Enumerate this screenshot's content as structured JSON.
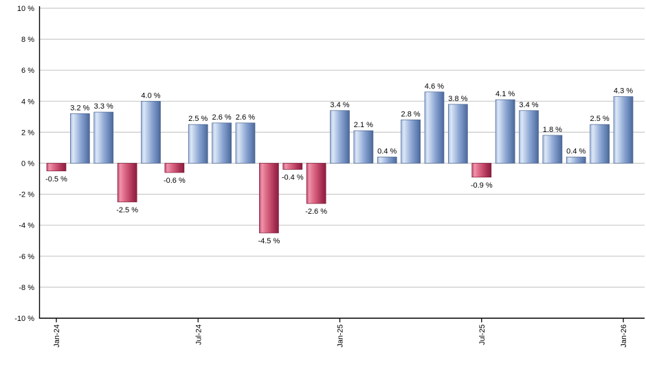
{
  "chart_data": {
    "type": "bar",
    "title": "",
    "legend": "none",
    "grid": "horizontal",
    "background": "#ffffff",
    "y_axis": {
      "min": -10,
      "max": 10,
      "step": 2,
      "tick_values": [
        10,
        8,
        6,
        4,
        2,
        0,
        -2,
        -4,
        -6,
        -8,
        -10
      ],
      "tick_labels": [
        "10 %",
        "8 %",
        "6 %",
        "4 %",
        "2 %",
        "0 %",
        "-2 %",
        "-4 %",
        "-6 %",
        "-8 %",
        "-10 %"
      ]
    },
    "x_axis": {
      "bar_count": 25,
      "label_rotation_deg": -90,
      "tick_labels": [
        {
          "bar_index": 0,
          "label": "Jan-24"
        },
        {
          "bar_index": 6,
          "label": "Jul-24"
        },
        {
          "bar_index": 12,
          "label": "Jan-25"
        },
        {
          "bar_index": 18,
          "label": "Jul-25"
        },
        {
          "bar_index": 24,
          "label": "Jan-26"
        }
      ]
    },
    "series": [
      {
        "name": "monthly-return-percent",
        "values": [
          -0.5,
          3.2,
          3.3,
          -2.5,
          4.0,
          -0.6,
          2.5,
          2.6,
          2.6,
          -4.5,
          -0.4,
          -2.6,
          3.4,
          2.1,
          0.4,
          2.8,
          4.6,
          3.8,
          -0.9,
          4.1,
          3.4,
          1.8,
          0.4,
          2.5,
          4.3
        ],
        "data_labels": [
          "-0.5 %",
          "3.2 %",
          "3.3 %",
          "-2.5 %",
          "4.0 %",
          "-0.6 %",
          "2.5 %",
          "2.6 %",
          "2.6 %",
          "-4.5 %",
          "-0.4 %",
          "-2.6 %",
          "3.4 %",
          "2.1 %",
          "0.4 %",
          "2.8 %",
          "4.6 %",
          "3.8 %",
          "-0.9 %",
          "4.1 %",
          "3.4 %",
          "1.8 %",
          "0.4 %",
          "2.5 %",
          "4.3 %"
        ]
      }
    ],
    "colors": {
      "positive_bar_gradient": {
        "direction": "left-to-right",
        "stops": [
          "#9db4dd",
          "#dde8f7",
          "#bccee9",
          "#8ba5d2",
          "#6784b6",
          "#4d6899"
        ],
        "offsets": [
          0,
          0.14,
          0.3,
          0.55,
          0.8,
          1
        ],
        "stroke": "#4a648f"
      },
      "negative_bar_gradient": {
        "direction": "left-to-right",
        "stops": [
          "#c04a6e",
          "#f095ac",
          "#e27490",
          "#c84f6f",
          "#a62e51",
          "#8a1f40"
        ],
        "offsets": [
          0,
          0.14,
          0.3,
          0.55,
          0.8,
          1
        ],
        "stroke": "#7d1c38"
      },
      "gridline": "#c9c9c9",
      "axis": "#000000",
      "text": "#000000",
      "background": "#ffffff"
    }
  }
}
